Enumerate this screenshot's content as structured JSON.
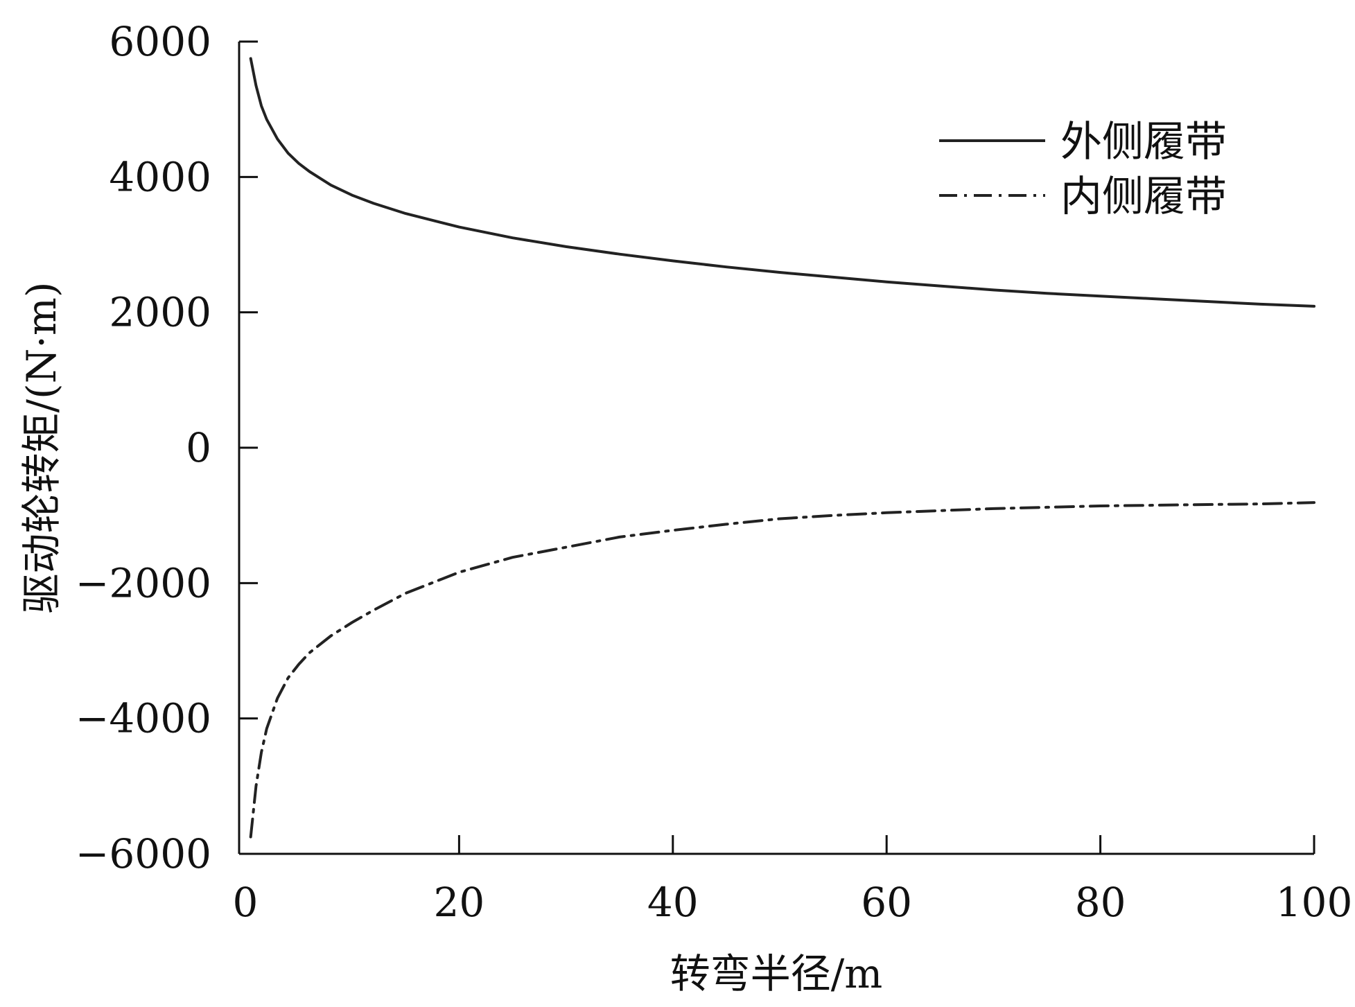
{
  "chart_data": {
    "type": "line",
    "title": "",
    "xlabel": "转弯半径/m",
    "ylabel": "驱动轮转矩/(N·m)",
    "xlim": [
      0,
      100
    ],
    "ylim": [
      -6000,
      6000
    ],
    "x_ticks": [
      0,
      20,
      40,
      60,
      80,
      100
    ],
    "x_tick_labels": [
      "0",
      "20",
      "40",
      "60",
      "80",
      "100"
    ],
    "y_ticks": [
      6000,
      4000,
      2000,
      0,
      -2000,
      -4000,
      -6000
    ],
    "y_tick_labels": [
      "6000",
      "4000",
      "2000",
      "0",
      "−2000",
      "−4000",
      "−6000"
    ],
    "grid": false,
    "legend_position": "top-right",
    "line_color": "#222222",
    "series": [
      {
        "name": "外侧履带",
        "style": "solid",
        "x": [
          0.5,
          1,
          1.5,
          2,
          3,
          4,
          5,
          6,
          8,
          10,
          12,
          15,
          20,
          25,
          30,
          35,
          40,
          45,
          50,
          55,
          60,
          65,
          70,
          75,
          80,
          85,
          90,
          95,
          100
        ],
        "values": [
          5750,
          5350,
          5050,
          4850,
          4560,
          4350,
          4200,
          4080,
          3880,
          3730,
          3610,
          3460,
          3260,
          3100,
          2970,
          2860,
          2760,
          2670,
          2590,
          2520,
          2450,
          2390,
          2330,
          2280,
          2240,
          2200,
          2160,
          2120,
          2090
        ]
      },
      {
        "name": "内侧履带",
        "style": "dash-dot",
        "x": [
          0.5,
          1,
          1.5,
          2,
          3,
          4,
          5,
          6,
          8,
          10,
          12,
          15,
          20,
          25,
          30,
          35,
          40,
          45,
          50,
          55,
          60,
          65,
          70,
          75,
          80,
          85,
          90,
          95,
          100
        ],
        "values": [
          -5750,
          -5000,
          -4500,
          -4150,
          -3700,
          -3400,
          -3200,
          -3030,
          -2780,
          -2580,
          -2400,
          -2150,
          -1840,
          -1620,
          -1470,
          -1320,
          -1220,
          -1130,
          -1050,
          -1000,
          -960,
          -930,
          -900,
          -880,
          -860,
          -850,
          -840,
          -830,
          -810
        ]
      }
    ]
  }
}
